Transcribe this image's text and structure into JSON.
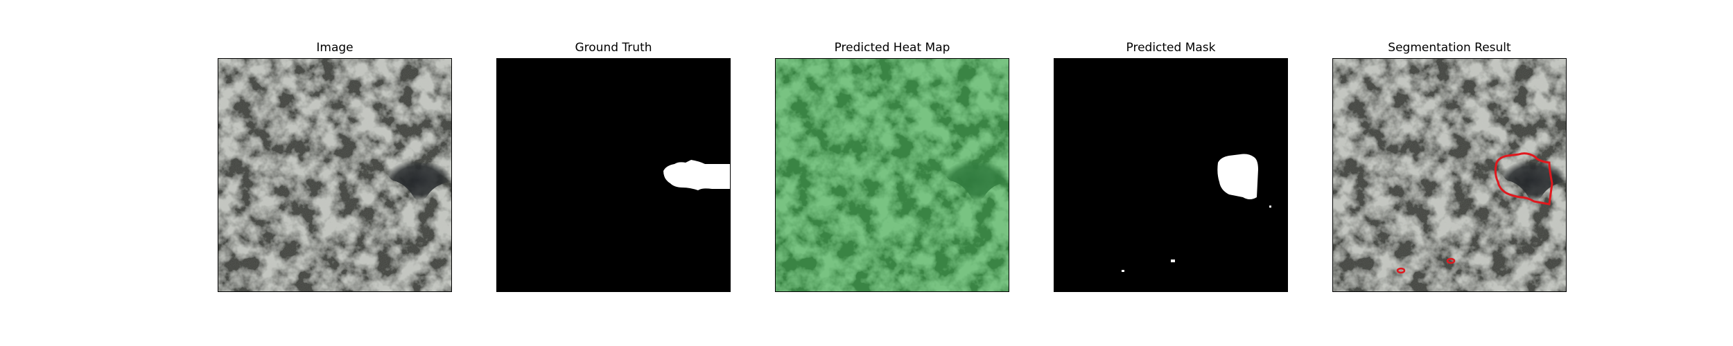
{
  "figure": {
    "panels": [
      {
        "title": "Image"
      },
      {
        "title": "Ground Truth"
      },
      {
        "title": "Predicted Heat Map"
      },
      {
        "title": "Predicted Mask"
      },
      {
        "title": "Segmentation Result"
      }
    ]
  },
  "colors": {
    "texture_light": "#8e948a",
    "texture_dark": "#3a3d37",
    "mask_background": "#000000",
    "mask_foreground": "#ffffff",
    "heatmap_tint": "#2faa3f",
    "contour": "#e0181e"
  }
}
